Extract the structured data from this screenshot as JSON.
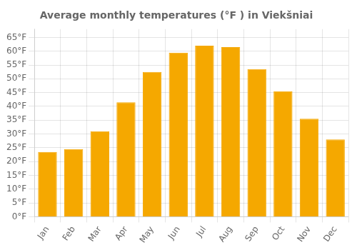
{
  "chart_data": {
    "type": "bar",
    "title": "Average monthly temperatures (°F ) in Viekšniai",
    "categories": [
      "Jan",
      "Feb",
      "Mar",
      "Apr",
      "May",
      "Jun",
      "Jul",
      "Aug",
      "Sep",
      "Oct",
      "Nov",
      "Dec"
    ],
    "values": [
      23.5,
      24.5,
      31.0,
      41.5,
      52.5,
      59.5,
      62.0,
      61.5,
      53.5,
      45.5,
      35.5,
      28.0
    ],
    "color": "#F5A800",
    "ylim": [
      0,
      68
    ],
    "yticks": [
      {
        "value": 0,
        "label": "0°F"
      },
      {
        "value": 5,
        "label": "5°F"
      },
      {
        "value": 10,
        "label": "10°F"
      },
      {
        "value": 15,
        "label": "15°F"
      },
      {
        "value": 20,
        "label": "20°F"
      },
      {
        "value": 25,
        "label": "25°F"
      },
      {
        "value": 30,
        "label": "30°F"
      },
      {
        "value": 35,
        "label": "35°F"
      },
      {
        "value": 40,
        "label": "40°F"
      },
      {
        "value": 45,
        "label": "45°F"
      },
      {
        "value": 50,
        "label": "50°F"
      },
      {
        "value": 55,
        "label": "55°F"
      },
      {
        "value": 60,
        "label": "60°F"
      },
      {
        "value": 65,
        "label": "65°F"
      }
    ],
    "grid": true
  }
}
